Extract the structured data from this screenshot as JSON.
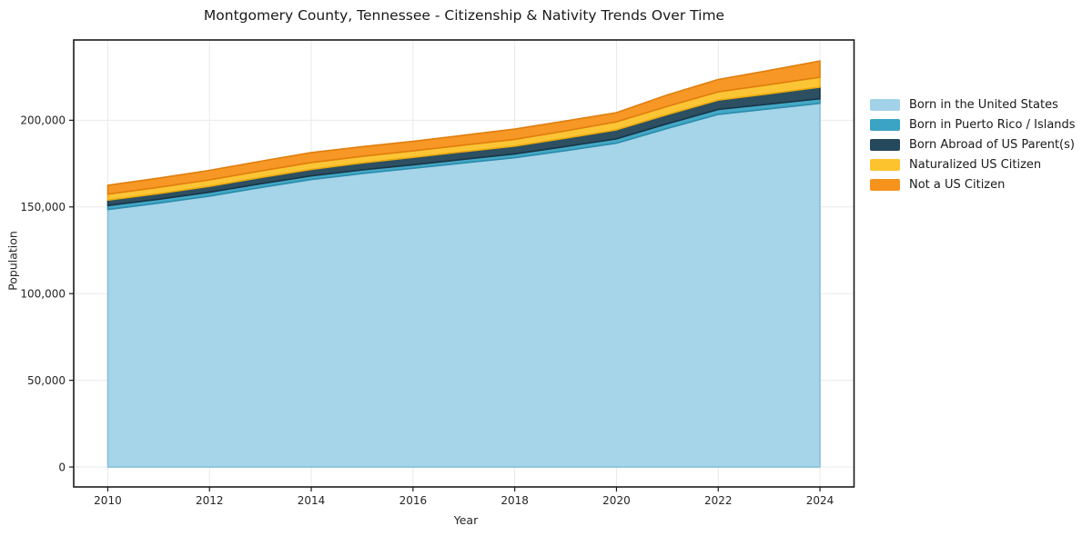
{
  "chart_data": {
    "type": "area",
    "stacked": true,
    "title": "Montgomery County, Tennessee - Citizenship & Nativity Trends Over Time",
    "xlabel": "Year",
    "ylabel": "Population",
    "x": [
      2010,
      2011,
      2012,
      2013,
      2014,
      2015,
      2016,
      2017,
      2018,
      2019,
      2020,
      2021,
      2022,
      2023,
      2024
    ],
    "series": [
      {
        "name": "Born in the United States",
        "color": "#a2d2e8",
        "edge_color": "#86c0dc",
        "values": [
          148500,
          152200,
          156300,
          161200,
          165800,
          169300,
          172300,
          175400,
          178400,
          182500,
          186800,
          195300,
          203400,
          206600,
          209800
        ]
      },
      {
        "name": "Born in Puerto Rico / Islands",
        "color": "#3ba4c4",
        "edge_color": "#2b8cab",
        "values": [
          2300,
          2250,
          2200,
          2150,
          2100,
          2050,
          2000,
          2100,
          2200,
          2350,
          2500,
          2700,
          2800,
          2700,
          2600
        ]
      },
      {
        "name": "Born Abroad of US Parent(s)",
        "color": "#24485c",
        "edge_color": "#183646",
        "values": [
          3100,
          3250,
          3400,
          3600,
          3800,
          4050,
          4300,
          4400,
          4500,
          4800,
          5200,
          5300,
          5400,
          6000,
          6700
        ]
      },
      {
        "name": "Naturalized US Citizen",
        "color": "#fcc32e",
        "edge_color": "#edac0e",
        "values": [
          3500,
          3600,
          3700,
          3800,
          3900,
          3800,
          3700,
          3800,
          3900,
          4200,
          4600,
          4700,
          4800,
          5200,
          5700
        ]
      },
      {
        "name": "Not a US Citizen",
        "color": "#f6931d",
        "edge_color": "#e07e0d",
        "values": [
          5100,
          5300,
          5500,
          5600,
          5800,
          5600,
          5500,
          5700,
          5900,
          5700,
          5300,
          6600,
          7100,
          8200,
          9400
        ]
      }
    ],
    "xticks": {
      "values": [
        2010,
        2012,
        2014,
        2016,
        2018,
        2020,
        2022,
        2024
      ],
      "labels": [
        "2010",
        "2012",
        "2014",
        "2016",
        "2018",
        "2020",
        "2022",
        "2024"
      ]
    },
    "yticks": {
      "values": [
        0,
        50000,
        100000,
        150000,
        200000
      ],
      "labels": [
        "0",
        "50,000",
        "100,000",
        "150,000",
        "200,000"
      ]
    },
    "xlim": [
      2009.33,
      2024.67
    ],
    "ylim": [
      -11500,
      246300
    ],
    "grid": true,
    "grid_color": "#e9e9e9",
    "spine_color": "#1a1a1a",
    "tick_label_color": "#262626",
    "legend_position": "right",
    "background": "#ffffff"
  }
}
